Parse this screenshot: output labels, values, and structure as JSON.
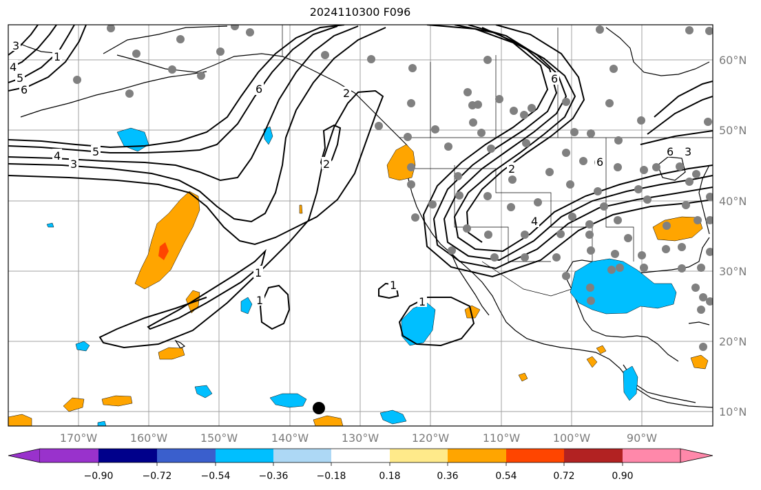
{
  "title": "2024110300 F096",
  "map": {
    "projection": "plate-carree",
    "lon_range": [
      -180,
      -80
    ],
    "lat_range": [
      8,
      65
    ],
    "gridlines": true,
    "colors": {
      "ocean": "#ffffff",
      "coast": "#000000",
      "grid": "#a0a0a0",
      "station": "#808080"
    }
  },
  "lat_labels": [
    "60°N",
    "50°N",
    "40°N",
    "30°N",
    "20°N",
    "10°N"
  ],
  "lon_labels": [
    "170°W",
    "160°W",
    "150°W",
    "140°W",
    "130°W",
    "120°W",
    "110°W",
    "100°W",
    "90°W"
  ],
  "contour_labels": [
    "3",
    "4",
    "5",
    "6",
    "4",
    "5",
    "3",
    "6",
    "6",
    "2",
    "6",
    "6",
    "2",
    "4",
    "2",
    "1",
    "1",
    "1",
    "1",
    "1",
    "3"
  ],
  "colorbar": {
    "ticks": [
      "−0.90",
      "−0.72",
      "−0.54",
      "−0.36",
      "−0.18",
      "0.18",
      "0.36",
      "0.54",
      "0.72",
      "0.90"
    ],
    "colors": [
      "#9932cc",
      "#00008b",
      "#3a5fcd",
      "#00bfff",
      "#add8f5",
      "#ffffff",
      "#ffea8a",
      "#ffa500",
      "#ff4500",
      "#b22222",
      "#ff88aa"
    ],
    "extend": "both"
  }
}
